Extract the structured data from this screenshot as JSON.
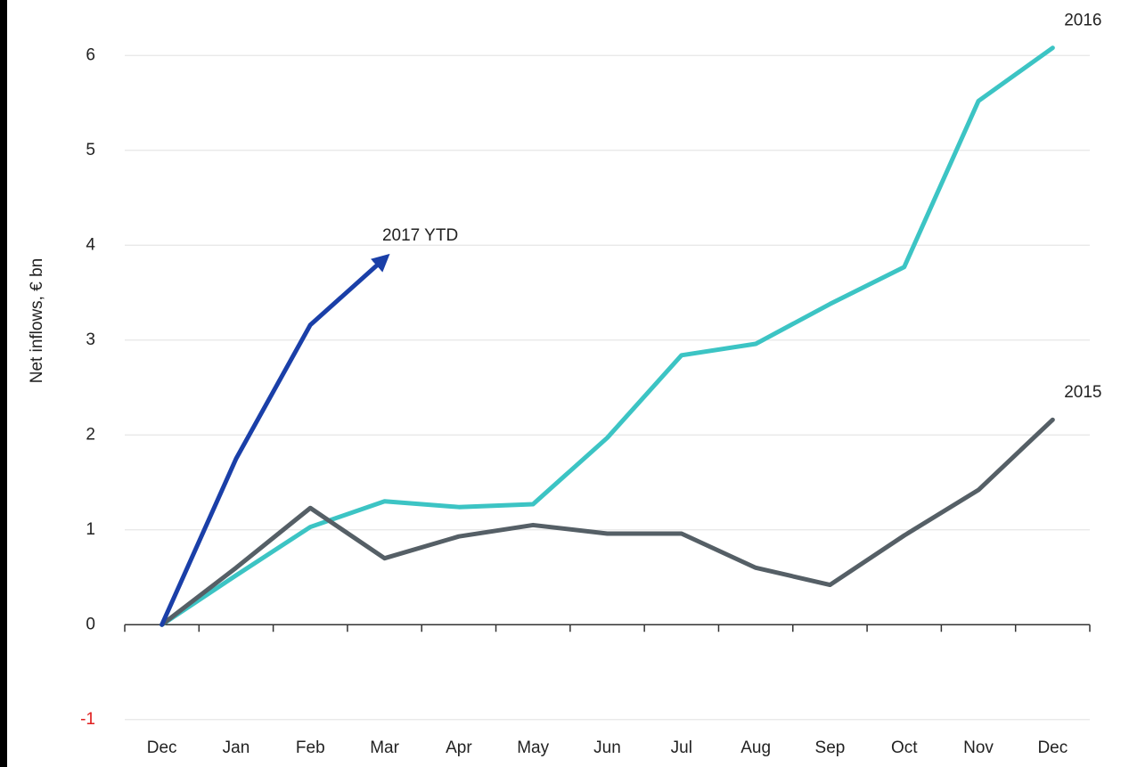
{
  "chart_data": {
    "type": "line",
    "y_label": "Net inflows, € bn",
    "categories": [
      "Dec",
      "Jan",
      "Feb",
      "Mar",
      "Apr",
      "May",
      "Jun",
      "Jul",
      "Aug",
      "Sep",
      "Oct",
      "Nov",
      "Dec"
    ],
    "series": [
      {
        "name": "2016",
        "color": "#3cc4c4",
        "values": [
          0,
          0.52,
          1.03,
          1.3,
          1.24,
          1.27,
          1.97,
          2.84,
          2.96,
          3.38,
          3.77,
          5.52,
          6.08
        ]
      },
      {
        "name": "2015",
        "color": "#555f66",
        "values": [
          0,
          0.6,
          1.23,
          0.7,
          0.93,
          1.05,
          0.96,
          0.96,
          0.6,
          0.42,
          0.94,
          1.42,
          2.16
        ]
      },
      {
        "name": "2017 YTD",
        "color": "#1a3fa8",
        "arrow": true,
        "values": [
          0,
          1.75,
          3.16,
          3.86,
          null,
          null,
          null,
          null,
          null,
          null,
          null,
          null,
          null
        ]
      }
    ],
    "ylim": [
      -1.5,
      6.5
    ],
    "yticks": [
      -1,
      0,
      1,
      2,
      3,
      4,
      5,
      6
    ],
    "negative_tick_color": "#e02020",
    "grid": true
  }
}
